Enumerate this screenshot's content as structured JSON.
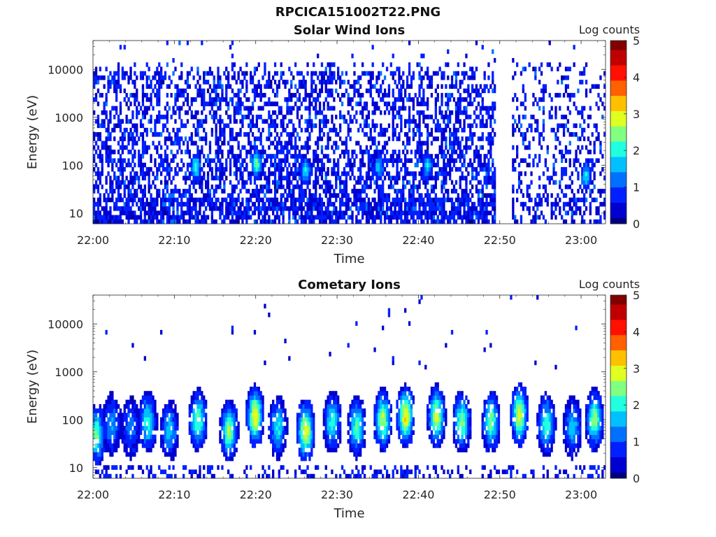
{
  "figure": {
    "title": "RPCICA151002T22.PNG"
  },
  "colormap": [
    "#00007f",
    "#0000d0",
    "#0020ff",
    "#0070ff",
    "#00c0ff",
    "#20ffdf",
    "#80ff80",
    "#dfff20",
    "#ffc000",
    "#ff6000",
    "#ff1000",
    "#c00000",
    "#800000"
  ],
  "chart_data": [
    {
      "type": "heatmap",
      "title": "Solar Wind Ions",
      "xlabel": "Time",
      "ylabel": "Energy (eV)",
      "x_ticks": [
        "22:00",
        "22:10",
        "22:20",
        "22:30",
        "22:40",
        "22:50",
        "23:00"
      ],
      "x_tick_values_min": [
        0,
        10,
        20,
        30,
        40,
        50,
        60
      ],
      "xlim_min": [
        0,
        63
      ],
      "y_scale": "log",
      "y_ticks": [
        "10",
        "100",
        "1000",
        "10000"
      ],
      "y_tick_values": [
        10,
        100,
        1000,
        10000
      ],
      "ylim": [
        6,
        40000
      ],
      "colorbar": {
        "label": "Log counts",
        "range": [
          0,
          5
        ],
        "ticks": [
          "0",
          "1",
          "2",
          "3",
          "4",
          "5"
        ]
      },
      "data_gaps_min": [
        [
          49.5,
          51.5
        ]
      ],
      "hot_spots": [
        {
          "t": 12.5,
          "e": 90,
          "v": 2.0
        },
        {
          "t": 20.0,
          "e": 110,
          "v": 2.3
        },
        {
          "t": 26.0,
          "e": 80,
          "v": 1.8
        },
        {
          "t": 35.0,
          "e": 90,
          "v": 1.6
        },
        {
          "t": 41.0,
          "e": 100,
          "v": 1.7
        },
        {
          "t": 60.5,
          "e": 60,
          "v": 1.8
        }
      ]
    },
    {
      "type": "heatmap",
      "title": "Cometary Ions",
      "xlabel": "Time",
      "ylabel": "Energy (eV)",
      "x_ticks": [
        "22:00",
        "22:10",
        "22:20",
        "22:30",
        "22:40",
        "22:50",
        "23:00"
      ],
      "x_tick_values_min": [
        0,
        10,
        20,
        30,
        40,
        50,
        60
      ],
      "xlim_min": [
        0,
        63
      ],
      "y_scale": "log",
      "y_ticks": [
        "10",
        "100",
        "1000",
        "10000"
      ],
      "y_tick_values": [
        10,
        100,
        1000,
        10000
      ],
      "ylim": [
        6,
        40000
      ],
      "colorbar": {
        "label": "Log counts",
        "range": [
          0,
          5
        ],
        "ticks": [
          "0",
          "1",
          "2",
          "3",
          "4",
          "5"
        ]
      },
      "bursts": [
        {
          "t": 0.3,
          "peak": 2.3,
          "e": 50
        },
        {
          "t": 2.2,
          "peak": 1.4,
          "e": 80
        },
        {
          "t": 4.5,
          "peak": 1.2,
          "e": 70
        },
        {
          "t": 6.6,
          "peak": 2.0,
          "e": 90
        },
        {
          "t": 9.3,
          "peak": 1.6,
          "e": 60
        },
        {
          "t": 12.8,
          "peak": 2.3,
          "e": 100
        },
        {
          "t": 16.6,
          "peak": 2.5,
          "e": 60
        },
        {
          "t": 19.8,
          "peak": 3.0,
          "e": 120
        },
        {
          "t": 22.6,
          "peak": 1.8,
          "e": 70
        },
        {
          "t": 26.0,
          "peak": 3.0,
          "e": 60
        },
        {
          "t": 29.3,
          "peak": 2.0,
          "e": 90
        },
        {
          "t": 32.3,
          "peak": 2.1,
          "e": 70
        },
        {
          "t": 35.5,
          "peak": 2.6,
          "e": 100
        },
        {
          "t": 38.3,
          "peak": 3.0,
          "e": 120
        },
        {
          "t": 42.1,
          "peak": 2.8,
          "e": 120
        },
        {
          "t": 45.2,
          "peak": 2.4,
          "e": 90
        },
        {
          "t": 48.8,
          "peak": 2.3,
          "e": 90
        },
        {
          "t": 52.3,
          "peak": 2.8,
          "e": 130
        },
        {
          "t": 55.6,
          "peak": 2.1,
          "e": 80
        },
        {
          "t": 58.8,
          "peak": 1.6,
          "e": 70
        },
        {
          "t": 61.5,
          "peak": 2.5,
          "e": 100
        }
      ]
    }
  ]
}
